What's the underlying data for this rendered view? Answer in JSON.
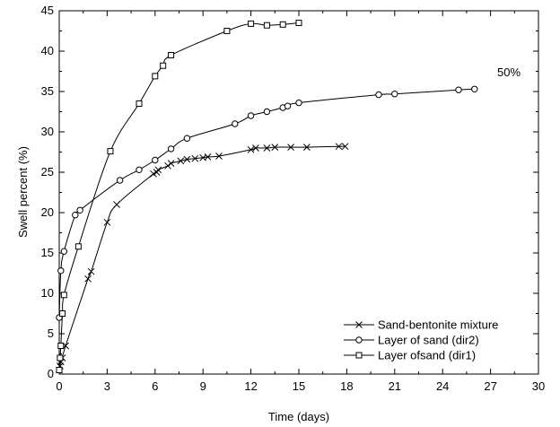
{
  "chart_data": {
    "type": "line",
    "title": "",
    "xlabel": "Time (days)",
    "ylabel": "Swell percent (%)",
    "xlim": [
      0,
      30
    ],
    "ylim": [
      0,
      45
    ],
    "xticks": [
      0,
      3,
      6,
      9,
      12,
      15,
      18,
      21,
      24,
      27,
      30
    ],
    "yticks": [
      0,
      5,
      10,
      15,
      20,
      25,
      30,
      35,
      40,
      45
    ],
    "grid": false,
    "legend_position": "bottom-right",
    "annotation": "50%",
    "series": [
      {
        "name": "Sand-bentonite mixture",
        "marker": "x",
        "x": [
          0,
          0.05,
          0.1,
          0.2,
          0.4,
          1.8,
          2.0,
          3.0,
          3.6,
          5.9,
          6.1,
          6.2,
          6.8,
          7.0,
          7.6,
          8.0,
          8.5,
          9.0,
          9.3,
          10.0,
          12.0,
          12.3,
          13.0,
          13.5,
          14.5,
          15.5,
          17.5,
          17.9
        ],
        "values": [
          0.5,
          1.0,
          1.5,
          2.0,
          3.5,
          11.8,
          12.7,
          18.8,
          21.0,
          24.8,
          25.0,
          25.3,
          25.8,
          26.1,
          26.4,
          26.6,
          26.7,
          26.8,
          26.9,
          27.0,
          27.8,
          28.0,
          28.0,
          28.1,
          28.1,
          28.1,
          28.2,
          28.2
        ]
      },
      {
        "name": "Layer of sand (dir2)",
        "marker": "circle",
        "x": [
          0,
          0.1,
          0.3,
          1.0,
          1.3,
          3.8,
          5.0,
          6.0,
          7.0,
          8.0,
          11.0,
          12.0,
          13.0,
          14.0,
          14.3,
          15.0,
          20.0,
          21.0,
          25.0,
          26.0
        ],
        "values": [
          7.0,
          12.8,
          15.2,
          19.7,
          20.3,
          24.0,
          25.3,
          26.5,
          27.9,
          29.2,
          31.0,
          32.0,
          32.5,
          33.0,
          33.2,
          33.6,
          34.6,
          34.7,
          35.2,
          35.3
        ],
        "annotation": "50%"
      },
      {
        "name": "Layer ofsand (dir1)",
        "marker": "square",
        "x": [
          0,
          0.05,
          0.1,
          0.2,
          0.3,
          1.2,
          3.2,
          5.0,
          6.0,
          6.5,
          7.0,
          10.5,
          12.0,
          13.0,
          14.0,
          15.0
        ],
        "values": [
          0.5,
          2.0,
          3.5,
          7.5,
          9.8,
          15.8,
          27.6,
          33.5,
          36.9,
          38.2,
          39.5,
          42.5,
          43.4,
          43.2,
          43.3,
          43.5
        ]
      }
    ]
  }
}
